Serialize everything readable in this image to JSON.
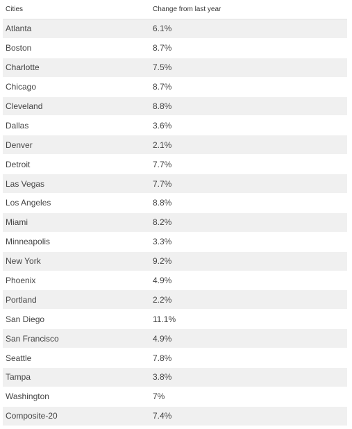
{
  "table": {
    "headers": {
      "city": "Cities",
      "change": "Change from last year"
    },
    "rows": [
      {
        "city": "Atlanta",
        "change": "6.1%"
      },
      {
        "city": "Boston",
        "change": "8.7%"
      },
      {
        "city": "Charlotte",
        "change": "7.5%"
      },
      {
        "city": "Chicago",
        "change": "8.7%"
      },
      {
        "city": "Cleveland",
        "change": "8.8%"
      },
      {
        "city": "Dallas",
        "change": "3.6%"
      },
      {
        "city": "Denver",
        "change": "2.1%"
      },
      {
        "city": "Detroit",
        "change": "7.7%"
      },
      {
        "city": "Las Vegas",
        "change": "7.7%"
      },
      {
        "city": "Los Angeles",
        "change": "8.8%"
      },
      {
        "city": "Miami",
        "change": "8.2%"
      },
      {
        "city": "Minneapolis",
        "change": "3.3%"
      },
      {
        "city": "New York",
        "change": "9.2%"
      },
      {
        "city": "Phoenix",
        "change": "4.9%"
      },
      {
        "city": "Portland",
        "change": "2.2%"
      },
      {
        "city": "San Diego",
        "change": "11.1%"
      },
      {
        "city": "San Francisco",
        "change": "4.9%"
      },
      {
        "city": "Seattle",
        "change": "7.8%"
      },
      {
        "city": "Tampa",
        "change": "3.8%"
      },
      {
        "city": "Washington",
        "change": "7%"
      },
      {
        "city": "Composite-20",
        "change": "7.4%"
      }
    ]
  }
}
